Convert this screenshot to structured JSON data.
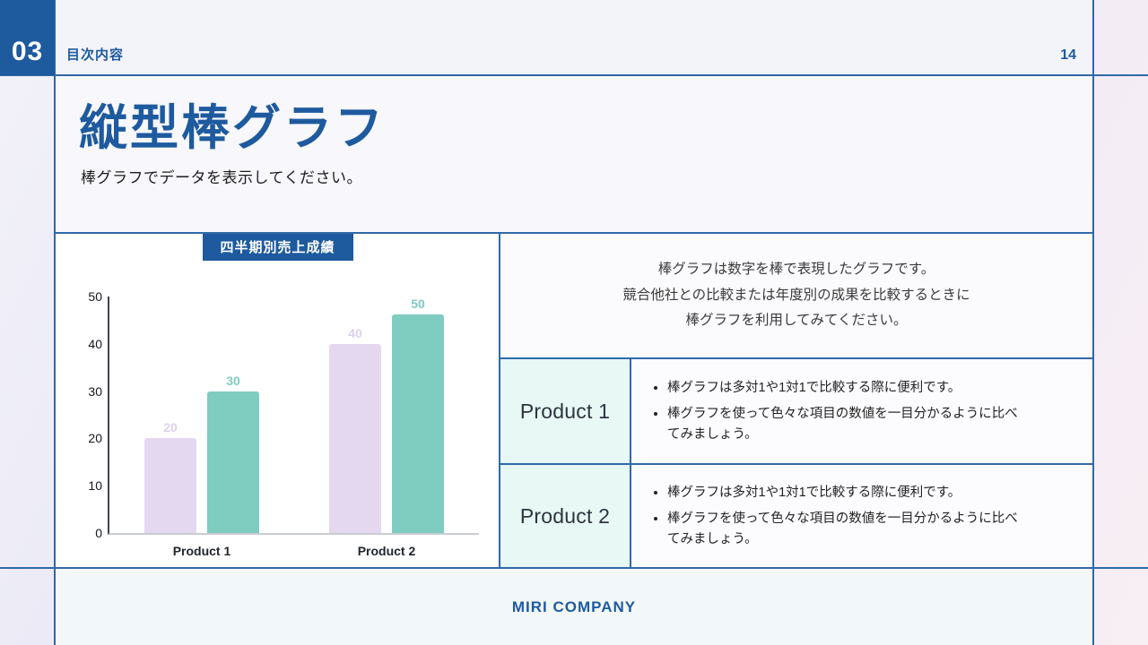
{
  "page": {
    "section_number": "03",
    "header_label": "目次内容",
    "page_number": "14"
  },
  "title": {
    "heading": "縦型棒グラフ",
    "subtitle": "棒グラフでデータを表示してください。"
  },
  "chart_data": {
    "type": "bar",
    "title": "四半期別売上成績",
    "categories": [
      "Product 1",
      "Product 2"
    ],
    "series": [
      {
        "values": [
          20,
          40
        ],
        "color": "#e4d8f1",
        "label_color": "#ddd0ec"
      },
      {
        "values": [
          30,
          50
        ],
        "color": "#7fccc1",
        "label_color": "#7fccc1"
      }
    ],
    "xlabel": "",
    "ylabel": "",
    "ylim": [
      0,
      50
    ],
    "ytick_step": 10,
    "grid": false,
    "legend": false,
    "bar_value_labels": true
  },
  "panel": {
    "description_lines": [
      "棒グラフは数字を棒で表現したグラフです。",
      "競合他社との比較または年度別の成果を比較するときに",
      "棒グラフを利用してみてください。"
    ],
    "rows": [
      {
        "label": "Product 1",
        "bullets": [
          "棒グラフは多対1や1対1で比較する際に便利です。",
          "棒グラフを使って色々な項目の数値を一目分かるように比べてみましょう。"
        ]
      },
      {
        "label": "Product 2",
        "bullets": [
          "棒グラフは多対1や1対1で比較する際に便利です。",
          "棒グラフを使って色々な項目の数値を一目分かるように比べてみましょう。"
        ]
      }
    ]
  },
  "footer": {
    "company_name": "MIRI COMPANY"
  },
  "colors": {
    "accent_blue": "#1e5a9e",
    "border_blue": "#2f69a8",
    "mint_cell": "#e7f8f5",
    "axis_line": "#3f444b",
    "baseline": "#c9ccd1"
  }
}
